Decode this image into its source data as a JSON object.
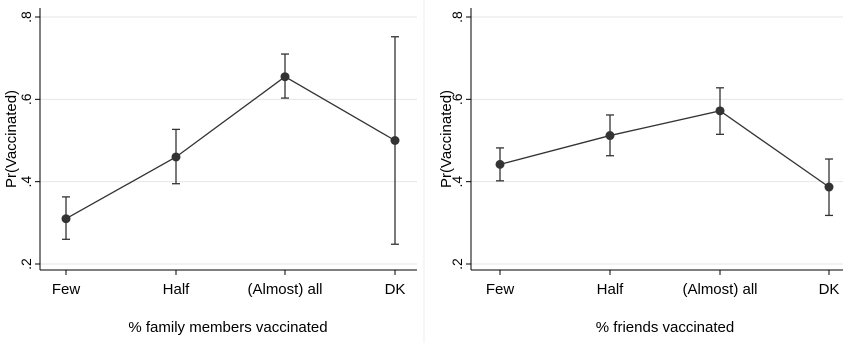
{
  "chart_data": [
    {
      "type": "line",
      "categories": [
        "Few",
        "Half",
        "(Almost) all",
        "DK"
      ],
      "values": [
        0.31,
        0.46,
        0.655,
        0.5
      ],
      "ci_low": [
        0.26,
        0.395,
        0.603,
        0.248
      ],
      "ci_high": [
        0.363,
        0.527,
        0.71,
        0.752
      ],
      "ylabel": "Pr(Vaccinated)",
      "xlabel": "% family members vaccinated",
      "yticks": [
        ".2",
        ".4",
        ".6",
        ".8"
      ],
      "ytick_values": [
        0.2,
        0.4,
        0.6,
        0.8
      ],
      "ylim": [
        0.2,
        0.8
      ],
      "grid": true,
      "color": "#333333"
    },
    {
      "type": "line",
      "categories": [
        "Few",
        "Half",
        "(Almost) all",
        "DK"
      ],
      "values": [
        0.442,
        0.512,
        0.572,
        0.387
      ],
      "ci_low": [
        0.402,
        0.463,
        0.515,
        0.318
      ],
      "ci_high": [
        0.482,
        0.562,
        0.628,
        0.455
      ],
      "ylabel": "Pr(Vaccinated)",
      "xlabel": "% friends vaccinated",
      "yticks": [
        ".2",
        ".4",
        ".6",
        ".8"
      ],
      "ytick_values": [
        0.2,
        0.4,
        0.6,
        0.8
      ],
      "ylim": [
        0.2,
        0.8
      ],
      "grid": true,
      "color": "#333333"
    }
  ]
}
